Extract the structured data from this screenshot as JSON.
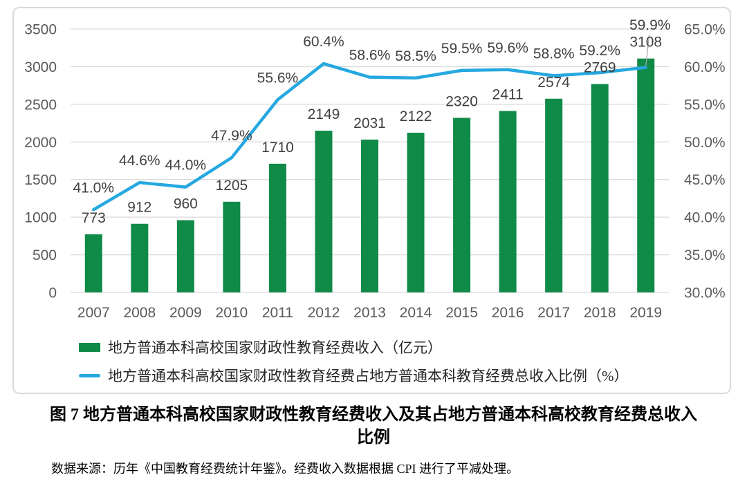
{
  "colors": {
    "bar": "#108A47",
    "line": "#25A8DF",
    "grid": "#d9d9d9",
    "frame_border": "#d9d9d9",
    "axis_text": "#595959",
    "data_label": "#404040",
    "leader": "#a6a6a6"
  },
  "legend": {
    "items": [
      {
        "label": "地方普通本科高校国家财政性教育经费收入（亿元）"
      },
      {
        "label": "地方普通本科高校国家财政性教育经费占地方普通本科教育经费总收入比例（%）"
      }
    ]
  },
  "caption": {
    "line1": "图 7 地方普通本科高校国家财政性教育经费收入及其占地方普通本科高校教育经费总收入",
    "line2": "比例",
    "source": "数据来源：历年《中国教育经费统计年鉴》。经费收入数据根据 CPI 进行了平减处理。"
  },
  "chart_data": {
    "type": "combo",
    "categories": [
      "2007",
      "2008",
      "2009",
      "2010",
      "2011",
      "2012",
      "2013",
      "2014",
      "2015",
      "2016",
      "2017",
      "2018",
      "2019"
    ],
    "series": [
      {
        "name": "地方普通本科高校国家财政性教育经费收入（亿元）",
        "type": "bar",
        "axis": "left",
        "color": "#108A47",
        "values": [
          773,
          912,
          960,
          1205,
          1710,
          2149,
          2031,
          2122,
          2320,
          2411,
          2574,
          2769,
          3108
        ]
      },
      {
        "name": "地方普通本科高校国家财政性教育经费占地方普通本科教育经费总收入比例（%）",
        "type": "line",
        "axis": "right",
        "color": "#25A8DF",
        "values": [
          41.0,
          44.6,
          44.0,
          47.9,
          55.6,
          60.4,
          58.6,
          58.5,
          59.5,
          59.6,
          58.8,
          59.2,
          59.9
        ],
        "labels": [
          "41.0%",
          "44.6%",
          "44.0%",
          "47.9%",
          "55.6%",
          "60.4%",
          "58.6%",
          "58.5%",
          "59.5%",
          "59.6%",
          "58.8%",
          "59.2%",
          "59.9%"
        ]
      }
    ],
    "left_axis": {
      "min": 0,
      "max": 3500,
      "step": 500,
      "tick_labels": [
        "0",
        "500",
        "1000",
        "1500",
        "2000",
        "2500",
        "3000",
        "3500"
      ]
    },
    "right_axis": {
      "min": 30,
      "max": 65,
      "step": 5,
      "tick_labels": [
        "30.0%",
        "35.0%",
        "40.0%",
        "45.0%",
        "50.0%",
        "55.0%",
        "60.0%",
        "65.0%"
      ]
    },
    "grid": true,
    "legend_position": "bottom"
  }
}
